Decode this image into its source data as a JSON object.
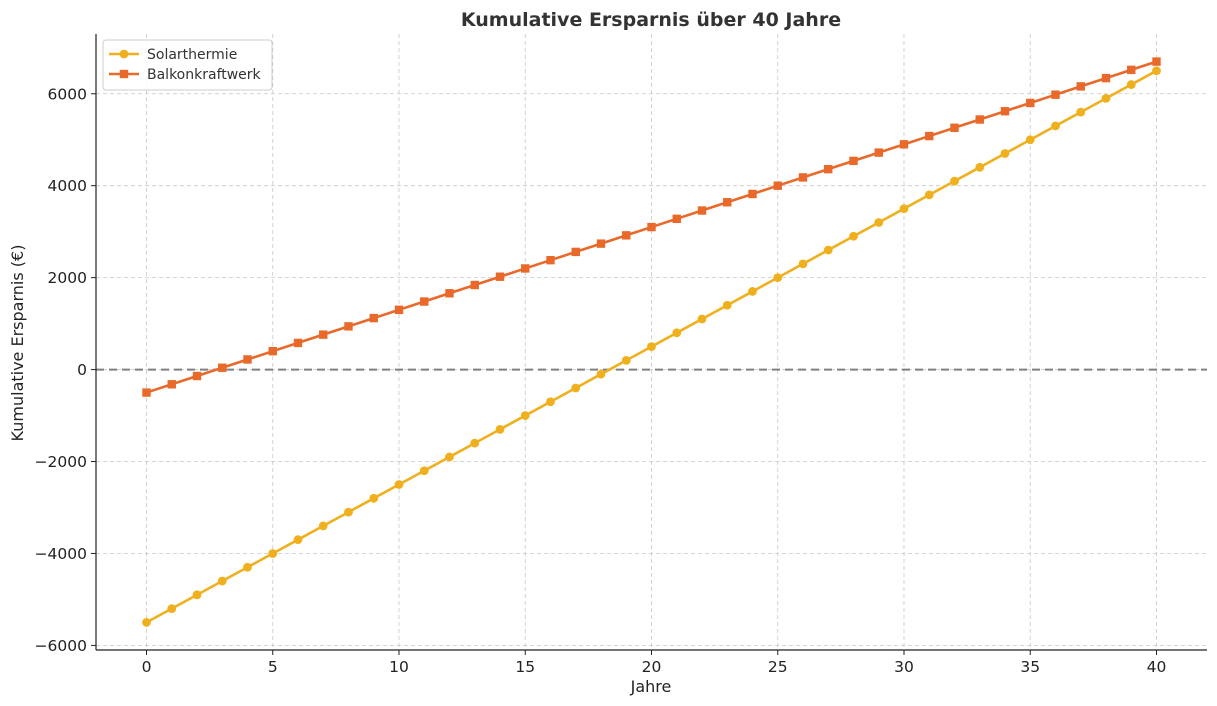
{
  "chart_data": {
    "type": "line",
    "title": "Kumulative Ersparnis über 40 Jahre",
    "xlabel": "Jahre",
    "ylabel": "Kumulative Ersparnis (€)",
    "xlim": [
      -2,
      42
    ],
    "ylim": [
      -6100,
      7300
    ],
    "xticks": [
      0,
      5,
      10,
      15,
      20,
      25,
      30,
      35,
      40
    ],
    "xtick_labels": [
      "0",
      "5",
      "10",
      "15",
      "20",
      "25",
      "30",
      "35",
      "40"
    ],
    "yticks": [
      -6000,
      -4000,
      -2000,
      0,
      2000,
      4000,
      6000
    ],
    "ytick_labels": [
      "−6000",
      "−4000",
      "−2000",
      "0",
      "2000",
      "4000",
      "6000"
    ],
    "grid": true,
    "legend_position": "top-left",
    "reference_line": {
      "y": 0,
      "style": "dashed",
      "color": "#808080"
    },
    "x": [
      0,
      1,
      2,
      3,
      4,
      5,
      6,
      7,
      8,
      9,
      10,
      11,
      12,
      13,
      14,
      15,
      16,
      17,
      18,
      19,
      20,
      21,
      22,
      23,
      24,
      25,
      26,
      27,
      28,
      29,
      30,
      31,
      32,
      33,
      34,
      35,
      36,
      37,
      38,
      39,
      40
    ],
    "series": [
      {
        "name": "Solarthermie",
        "color": "#f0b01e",
        "marker": "circle",
        "values": [
          -5500,
          -5200,
          -4900,
          -4600,
          -4300,
          -4000,
          -3700,
          -3400,
          -3100,
          -2800,
          -2500,
          -2200,
          -1900,
          -1600,
          -1300,
          -1000,
          -700,
          -400,
          -100,
          200,
          500,
          800,
          1100,
          1400,
          1700,
          2000,
          2300,
          2600,
          2900,
          3200,
          3500,
          3800,
          4100,
          4400,
          4700,
          5000,
          5300,
          5600,
          5900,
          6200,
          6500
        ]
      },
      {
        "name": "Balkonkraftwerk",
        "color": "#e8692a",
        "marker": "square",
        "values": [
          -500,
          -320,
          -140,
          40,
          220,
          400,
          580,
          760,
          940,
          1120,
          1300,
          1480,
          1660,
          1840,
          2020,
          2200,
          2380,
          2560,
          2740,
          2920,
          3100,
          3280,
          3460,
          3640,
          3820,
          4000,
          4180,
          4360,
          4540,
          4720,
          4900,
          5080,
          5260,
          5440,
          5620,
          5800,
          5980,
          6160,
          6340,
          6520,
          6700
        ]
      }
    ]
  }
}
